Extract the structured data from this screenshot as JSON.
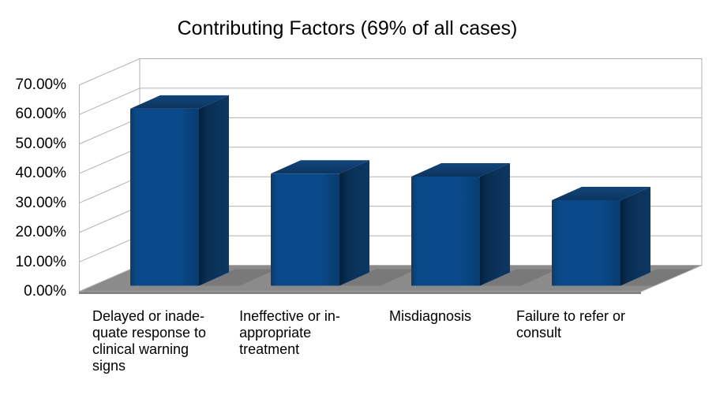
{
  "chart_data": {
    "type": "bar",
    "style": "3d-bar",
    "title": "Contributing Factors (69% of all cases)",
    "categories": [
      "Delayed or inadequate response to clinical warning signs",
      "Ineffective or inappropriate treatment",
      "Misdiagnosis",
      "Failure to refer or consult"
    ],
    "categories_wrapped": [
      [
        "Delayed or inade-",
        "quate response to",
        "clinical warning",
        "signs"
      ],
      [
        "Ineffective or in-",
        "appropriate",
        "treatment"
      ],
      [
        "Misdiagnosis"
      ],
      [
        "Failure to refer or",
        "consult"
      ]
    ],
    "values": [
      60,
      38,
      37,
      29
    ],
    "unit": "%",
    "xlabel": "",
    "ylabel": "",
    "ylim": [
      0,
      70
    ],
    "y_tick_step": 10,
    "y_tick_labels": [
      "70.00%",
      "60.00%",
      "50.00%",
      "40.00%",
      "30.00%",
      "20.00%",
      "10.00%",
      "0.00%"
    ],
    "grid": true,
    "legend_position": "none",
    "colors": {
      "bar_front": "#0b4a8a",
      "bar_front_edge": "#083c70",
      "bar_side": "#0a2f55",
      "bar_side_dark": "#041f3d",
      "bar_side_light": "#0d3863",
      "bar_top": "#0c3560",
      "bar_top_light": "#12457a",
      "floor": "#8b8b8b",
      "floor_edge": "#828282",
      "gridline": "#b1b1b1",
      "wall_bg": "#ffffff",
      "text": "#000000"
    }
  }
}
